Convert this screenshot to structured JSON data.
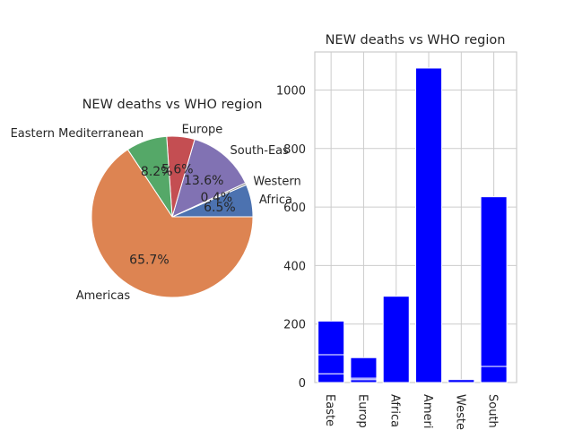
{
  "chart_data": [
    {
      "type": "pie",
      "title": "NEW deaths vs WHO region",
      "labels": [
        "Africa",
        "Western",
        "South-Eas",
        "Europe",
        "Eastern Mediterranean",
        "Americas"
      ],
      "values": [
        6.5,
        0.4,
        13.6,
        5.6,
        8.2,
        65.7
      ],
      "percent_labels": [
        "6.5%",
        "0.4%",
        "13.6%",
        "5.6%",
        "8.2%",
        "65.7%"
      ],
      "colors": [
        "#4c72b0",
        "#8c8c8c",
        "#8172b3",
        "#c44e52",
        "#55a868",
        "#dd8452"
      ]
    },
    {
      "type": "bar",
      "title": "NEW deaths vs WHO region",
      "categories": [
        "Easte",
        "Europ",
        "Africa",
        "Ameri",
        "Weste",
        "South"
      ],
      "values": [
        210,
        85,
        295,
        1075,
        10,
        635
      ],
      "segments": [
        [
          30,
          95,
          210
        ],
        [
          10,
          15,
          85
        ],
        [
          295
        ],
        [
          1075
        ],
        [
          10
        ],
        [
          55,
          635
        ]
      ],
      "ylim": [
        0,
        1130
      ],
      "yticks": [
        0,
        200,
        400,
        600,
        800,
        1000
      ],
      "grid": true,
      "color": "#0000ff"
    }
  ]
}
